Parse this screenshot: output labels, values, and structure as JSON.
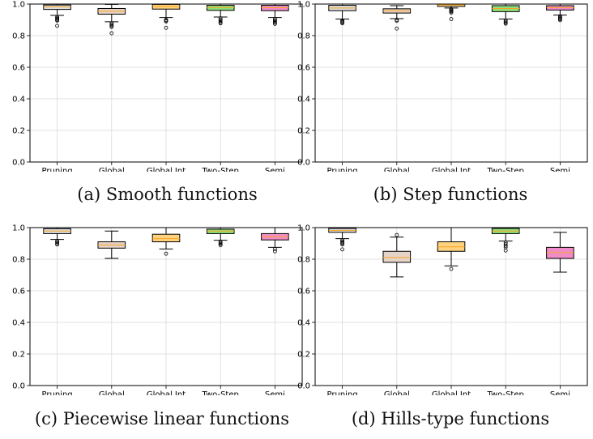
{
  "panels": [
    {
      "caption": "(a) Smooth functions",
      "chart_data": {
        "type": "box",
        "categories": [
          "Pruning",
          "Global",
          "Global Int",
          "Two-Step",
          "Semi"
        ],
        "ylim": [
          0,
          1.0
        ],
        "yticks": [
          "0.0",
          "0.2",
          "0.4",
          "0.6",
          "0.8",
          "1.0"
        ],
        "grid": true,
        "boxes": [
          {
            "q1": 0.966,
            "median": 0.982,
            "q3": 0.994,
            "whislo": 0.928,
            "whishi": 1.0,
            "fliers": [
              0.918,
              0.912,
              0.906,
              0.9,
              0.895,
              0.862
            ]
          },
          {
            "q1": 0.936,
            "median": 0.955,
            "q3": 0.972,
            "whislo": 0.888,
            "whishi": 0.998,
            "fliers": [
              0.878,
              0.87,
              0.862,
              0.855,
              0.815
            ]
          },
          {
            "q1": 0.968,
            "median": 0.985,
            "q3": 0.998,
            "whislo": 0.915,
            "whishi": 1.0,
            "fliers": [
              0.9,
              0.895,
              0.89,
              0.85
            ]
          },
          {
            "q1": 0.96,
            "median": 0.978,
            "q3": 0.992,
            "whislo": 0.918,
            "whishi": 1.0,
            "fliers": [
              0.91,
              0.9,
              0.893,
              0.885,
              0.878
            ]
          },
          {
            "q1": 0.958,
            "median": 0.977,
            "q3": 0.992,
            "whislo": 0.915,
            "whishi": 1.0,
            "fliers": [
              0.905,
              0.898,
              0.89,
              0.882,
              0.875
            ]
          }
        ]
      }
    },
    {
      "caption": "(b) Step functions",
      "chart_data": {
        "type": "box",
        "categories": [
          "Pruning",
          "Global",
          "Global Int",
          "Two-Step",
          "Semi"
        ],
        "ylim": [
          0,
          1.0
        ],
        "yticks": [
          "0.0",
          "0.2",
          "0.4",
          "0.6",
          "0.8",
          "1.0"
        ],
        "grid": true,
        "boxes": [
          {
            "q1": 0.958,
            "median": 0.975,
            "q3": 0.992,
            "whislo": 0.905,
            "whishi": 1.0,
            "fliers": [
              0.896,
              0.89,
              0.885,
              0.878
            ]
          },
          {
            "q1": 0.943,
            "median": 0.958,
            "q3": 0.97,
            "whislo": 0.908,
            "whishi": 0.99,
            "fliers": [
              0.9,
              0.893,
              0.845
            ]
          },
          {
            "q1": 0.985,
            "median": 0.995,
            "q3": 1.0,
            "whislo": 0.975,
            "whishi": 1.0,
            "fliers": [
              0.968,
              0.962,
              0.957,
              0.952,
              0.945,
              0.905
            ]
          },
          {
            "q1": 0.952,
            "median": 0.972,
            "q3": 0.99,
            "whislo": 0.905,
            "whishi": 1.0,
            "fliers": [
              0.895,
              0.888,
              0.882,
              0.876
            ]
          },
          {
            "q1": 0.962,
            "median": 0.977,
            "q3": 0.99,
            "whislo": 0.93,
            "whishi": 1.0,
            "fliers": [
              0.923,
              0.917,
              0.91,
              0.905,
              0.898
            ]
          }
        ]
      }
    },
    {
      "caption": "(c) Piecewise linear functions",
      "chart_data": {
        "type": "box",
        "categories": [
          "Pruning",
          "Global",
          "Global Int",
          "Two-Step",
          "Semi"
        ],
        "ylim": [
          0,
          1.0
        ],
        "yticks": [
          "0.0",
          "0.2",
          "0.4",
          "0.6",
          "0.8",
          "1.0"
        ],
        "grid": true,
        "boxes": [
          {
            "q1": 0.962,
            "median": 0.978,
            "q3": 0.993,
            "whislo": 0.925,
            "whishi": 1.0,
            "fliers": [
              0.915,
              0.908,
              0.9,
              0.893
            ]
          },
          {
            "q1": 0.87,
            "median": 0.89,
            "q3": 0.91,
            "whislo": 0.805,
            "whishi": 0.978,
            "fliers": []
          },
          {
            "q1": 0.91,
            "median": 0.93,
            "q3": 0.958,
            "whislo": 0.865,
            "whishi": 1.0,
            "fliers": [
              0.835
            ]
          },
          {
            "q1": 0.962,
            "median": 0.978,
            "q3": 0.99,
            "whislo": 0.92,
            "whishi": 1.0,
            "fliers": [
              0.91,
              0.903,
              0.896,
              0.888
            ]
          },
          {
            "q1": 0.922,
            "median": 0.942,
            "q3": 0.962,
            "whislo": 0.875,
            "whishi": 1.0,
            "fliers": [
              0.865,
              0.85
            ]
          }
        ]
      }
    },
    {
      "caption": "(d) Hills-type functions",
      "chart_data": {
        "type": "box",
        "categories": [
          "Pruning",
          "Global",
          "Global Int",
          "Two-Step",
          "Semi"
        ],
        "ylim": [
          0,
          1.0
        ],
        "yticks": [
          "0.0",
          "0.2",
          "0.4",
          "0.6",
          "0.8",
          "1.0"
        ],
        "grid": true,
        "boxes": [
          {
            "q1": 0.97,
            "median": 0.982,
            "q3": 0.995,
            "whislo": 0.93,
            "whishi": 1.0,
            "fliers": [
              0.92,
              0.913,
              0.906,
              0.9,
              0.893,
              0.862
            ]
          },
          {
            "q1": 0.78,
            "median": 0.81,
            "q3": 0.85,
            "whislo": 0.688,
            "whishi": 0.94,
            "fliers": [
              0.953
            ]
          },
          {
            "q1": 0.85,
            "median": 0.878,
            "q3": 0.91,
            "whislo": 0.758,
            "whishi": 1.0,
            "fliers": [
              0.738
            ]
          },
          {
            "q1": 0.962,
            "median": 0.978,
            "q3": 0.995,
            "whislo": 0.915,
            "whishi": 1.0,
            "fliers": [
              0.905,
              0.895,
              0.885,
              0.875,
              0.855
            ]
          },
          {
            "q1": 0.805,
            "median": 0.842,
            "q3": 0.875,
            "whislo": 0.718,
            "whishi": 0.97,
            "fliers": []
          }
        ]
      }
    }
  ],
  "colors": {
    "box_fills": [
      "#dddddd",
      "#e6d3c8",
      "#ffd27f",
      "#90e07a",
      "#f08cc8"
    ],
    "median": "#f5a623",
    "grid": "#d9d9d9",
    "axis": "#000000"
  }
}
